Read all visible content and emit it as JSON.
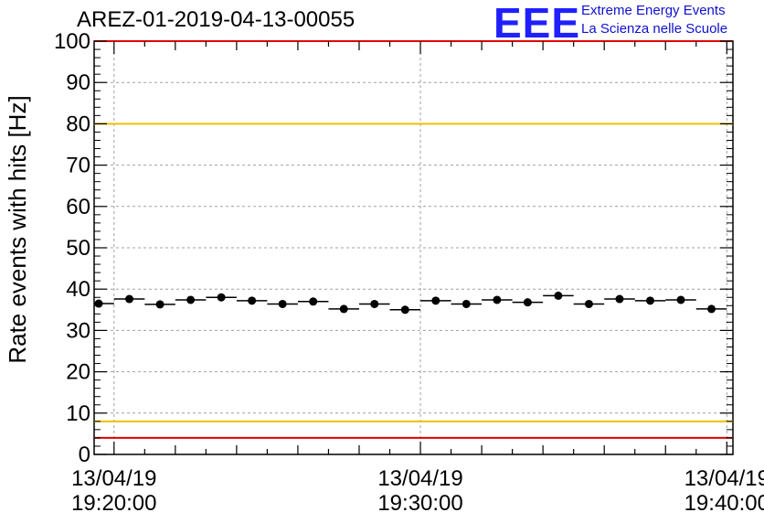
{
  "title": "AREZ-01-2019-04-13-00055",
  "logo": {
    "mark": "EEE",
    "line1": "Extreme Energy Events",
    "line2": "La Scienza nelle Scuole",
    "color": "#1010d0"
  },
  "chart_data": {
    "type": "scatter",
    "ylabel": "Rate events with hits [Hz]",
    "ylim": [
      0,
      100
    ],
    "yticks": [
      0,
      10,
      20,
      30,
      40,
      50,
      60,
      70,
      80,
      90,
      100
    ],
    "xlim_minutes": [
      19.35,
      40.2
    ],
    "xticks": [
      {
        "date": "13/04/19",
        "time": "19:20:00"
      },
      {
        "date": "13/04/19",
        "time": "19:30:00"
      },
      {
        "date": "13/04/19",
        "time": "19:40:00"
      }
    ],
    "grid": true,
    "reference_lines": [
      {
        "value": 80,
        "color": "#f0c000"
      },
      {
        "value": 8,
        "color": "#f0c000"
      },
      {
        "value": 100,
        "color": "#e00000"
      },
      {
        "value": 4,
        "color": "#e00000"
      }
    ],
    "series": [
      {
        "bin_width_minutes": 1,
        "x_start_minutes": 19.5,
        "values": [
          36.5,
          37.6,
          36.3,
          37.4,
          38.0,
          37.2,
          36.4,
          37.0,
          35.2,
          36.4,
          35.0,
          37.2,
          36.4,
          37.4,
          36.8,
          38.4,
          36.4,
          37.6,
          37.2,
          37.4,
          35.2
        ]
      }
    ]
  }
}
